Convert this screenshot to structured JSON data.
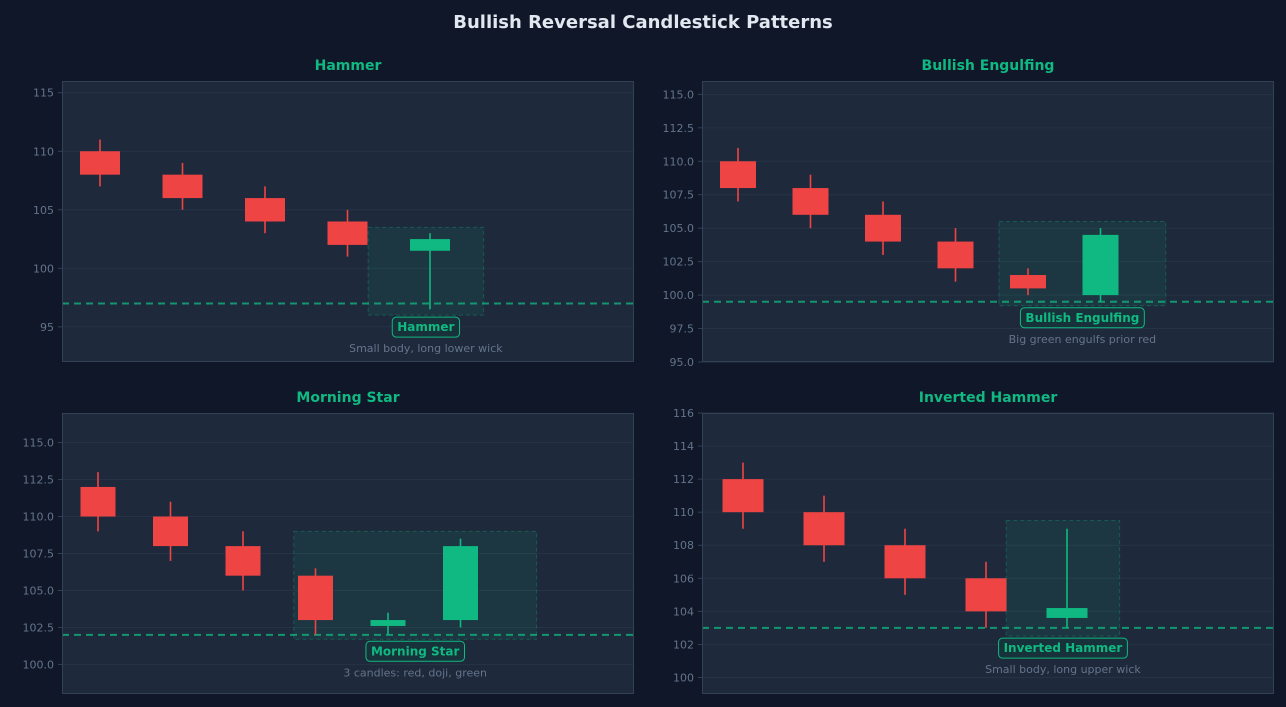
{
  "figure": {
    "title": "Bullish Reversal Candlestick Patterns"
  },
  "colors": {
    "background": "#0f1729",
    "plot_bg": "#1e293b",
    "frame": "#334155",
    "grid": "#263346",
    "bearish": "#ef4444",
    "bullish": "#10b981",
    "tick_text": "#64748b"
  },
  "chart_data": [
    {
      "type": "candlestick",
      "title": "Hammer",
      "ylim": [
        92,
        116
      ],
      "yticks": [
        95,
        100,
        105,
        110,
        115
      ],
      "tick_labels": [
        "95",
        "100",
        "105",
        "110",
        "115"
      ],
      "candles": [
        {
          "open": 110,
          "high": 111,
          "low": 107,
          "close": 108
        },
        {
          "open": 108,
          "high": 109,
          "low": 105,
          "close": 106
        },
        {
          "open": 106,
          "high": 107,
          "low": 103,
          "close": 104
        },
        {
          "open": 104,
          "high": 105,
          "low": 101,
          "close": 102
        },
        {
          "open": 101.5,
          "high": 103,
          "low": 96.5,
          "close": 102.5
        }
      ],
      "support_level": 97,
      "highlight": {
        "x_from": 3.25,
        "x_to": 4.65,
        "y_from": 96,
        "y_to": 103.5
      },
      "annotation": {
        "label": "Hammer",
        "description": "Small body, long lower wick"
      }
    },
    {
      "type": "candlestick",
      "title": "Bullish Engulfing",
      "ylim": [
        95,
        116
      ],
      "yticks": [
        95,
        97.5,
        100,
        102.5,
        105,
        107.5,
        110,
        112.5,
        115
      ],
      "tick_labels": [
        "95.0",
        "97.5",
        "100.0",
        "102.5",
        "105.0",
        "107.5",
        "110.0",
        "112.5",
        "115.0"
      ],
      "candles": [
        {
          "open": 110,
          "high": 111,
          "low": 107,
          "close": 108
        },
        {
          "open": 108,
          "high": 109,
          "low": 105,
          "close": 106
        },
        {
          "open": 106,
          "high": 107,
          "low": 103,
          "close": 104
        },
        {
          "open": 104,
          "high": 105,
          "low": 101,
          "close": 102
        },
        {
          "open": 101.5,
          "high": 102,
          "low": 100,
          "close": 100.5
        },
        {
          "open": 100,
          "high": 105,
          "low": 99.5,
          "close": 104.5
        }
      ],
      "support_level": 99.5,
      "highlight": {
        "x_from": 3.6,
        "x_to": 5.9,
        "y_from": 99.2,
        "y_to": 105.5
      },
      "annotation": {
        "label": "Bullish Engulfing",
        "description": "Big green engulfs prior red"
      }
    },
    {
      "type": "candlestick",
      "title": "Morning Star",
      "ylim": [
        98,
        117
      ],
      "yticks": [
        100,
        102.5,
        105,
        107.5,
        110,
        112.5,
        115
      ],
      "tick_labels": [
        "100.0",
        "102.5",
        "105.0",
        "107.5",
        "110.0",
        "112.5",
        "115.0"
      ],
      "candles": [
        {
          "open": 112,
          "high": 113,
          "low": 109,
          "close": 110
        },
        {
          "open": 110,
          "high": 111,
          "low": 107,
          "close": 108
        },
        {
          "open": 108,
          "high": 109,
          "low": 105,
          "close": 106
        },
        {
          "open": 106,
          "high": 106.5,
          "low": 102,
          "close": 103
        },
        {
          "open": 102.6,
          "high": 103.5,
          "low": 102,
          "close": 103
        },
        {
          "open": 103,
          "high": 108.5,
          "low": 102.5,
          "close": 108
        }
      ],
      "support_level": 102,
      "highlight": {
        "x_from": 2.7,
        "x_to": 6.05,
        "y_from": 101.7,
        "y_to": 109
      },
      "annotation": {
        "label": "Morning Star",
        "description": "3 candles: red, doji, green"
      }
    },
    {
      "type": "candlestick",
      "title": "Inverted Hammer",
      "ylim": [
        99,
        116
      ],
      "yticks": [
        100,
        102,
        104,
        106,
        108,
        110,
        112,
        114,
        116
      ],
      "tick_labels": [
        "100",
        "102",
        "104",
        "106",
        "108",
        "110",
        "112",
        "114",
        "116"
      ],
      "candles": [
        {
          "open": 112,
          "high": 113,
          "low": 109,
          "close": 110
        },
        {
          "open": 110,
          "high": 111,
          "low": 107,
          "close": 108
        },
        {
          "open": 108,
          "high": 109,
          "low": 105,
          "close": 106
        },
        {
          "open": 106,
          "high": 107,
          "low": 103,
          "close": 104
        },
        {
          "open": 103.6,
          "high": 109,
          "low": 103,
          "close": 104.2
        }
      ],
      "support_level": 103,
      "highlight": {
        "x_from": 3.25,
        "x_to": 4.65,
        "y_from": 102.5,
        "y_to": 109.5
      },
      "annotation": {
        "label": "Inverted Hammer",
        "description": "Small body, long upper wick"
      }
    }
  ]
}
